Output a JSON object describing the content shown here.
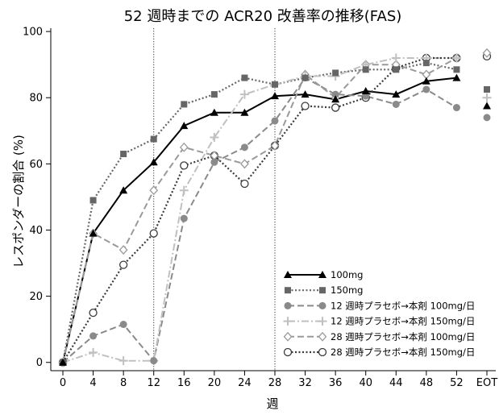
{
  "chart_data": {
    "type": "line",
    "title": "52 週時までの ACR20 改善率の推移(FAS)",
    "xlabel": "週",
    "ylabel": "レスポンダーの割合 (%)",
    "categories": [
      "0",
      "4",
      "8",
      "12",
      "16",
      "20",
      "24",
      "28",
      "32",
      "36",
      "40",
      "44",
      "48",
      "52",
      "EOT"
    ],
    "yticks": [
      0,
      20,
      40,
      60,
      80,
      100
    ],
    "ylim": [
      -2.5,
      101
    ],
    "grid": false,
    "legend": "lower-right",
    "reference_lines_x": [
      "12",
      "28"
    ],
    "series": [
      {
        "name": "100mg",
        "color": "#000000",
        "marker": "triangle",
        "line_style": "solid",
        "values": [
          0,
          39,
          52,
          60.5,
          71.5,
          75.5,
          75.5,
          80.5,
          81,
          79.5,
          82,
          81,
          85,
          86,
          77.5
        ]
      },
      {
        "name": "150mg",
        "color": "#666666",
        "marker": "square",
        "line_style": "dotted",
        "values": [
          0,
          49,
          63,
          67.5,
          78,
          81,
          86,
          84,
          86,
          87.5,
          88.5,
          88.5,
          90.5,
          88.5,
          82.5
        ]
      },
      {
        "name": "12 週時プラセボ→本剤 100mg/日",
        "color": "#8a8a8a",
        "marker": "circle",
        "line_style": "dashed",
        "values": [
          0,
          8,
          11.5,
          0.5,
          43.5,
          60.5,
          65,
          73,
          86,
          81,
          80.5,
          78,
          82.5,
          77,
          74
        ]
      },
      {
        "name": "12 週時プラセボ→本剤 150mg/日",
        "color": "#c0c0c0",
        "marker": "plus",
        "line_style": "dash-dot",
        "values": [
          0,
          3,
          0.5,
          0.5,
          52,
          68,
          81,
          84,
          86.5,
          86.5,
          90,
          92,
          92,
          92,
          80
        ]
      },
      {
        "name": "28 週時プラセボ→本剤 100mg/日",
        "color": "#9a9a9a",
        "marker": "diamond-open",
        "line_style": "dashed",
        "values": [
          0,
          39,
          34,
          52,
          65,
          62.5,
          60,
          65.5,
          87,
          80,
          90,
          90,
          87,
          92,
          93.5
        ]
      },
      {
        "name": "28 週時プラセボ→本剤 150mg/日",
        "color": "#3a3a3a",
        "marker": "circle-open",
        "line_style": "dotted",
        "values": [
          0,
          15,
          29.5,
          39,
          59.5,
          62.5,
          54,
          65.5,
          77.5,
          77,
          80,
          89,
          92,
          92,
          92.5
        ]
      }
    ]
  }
}
